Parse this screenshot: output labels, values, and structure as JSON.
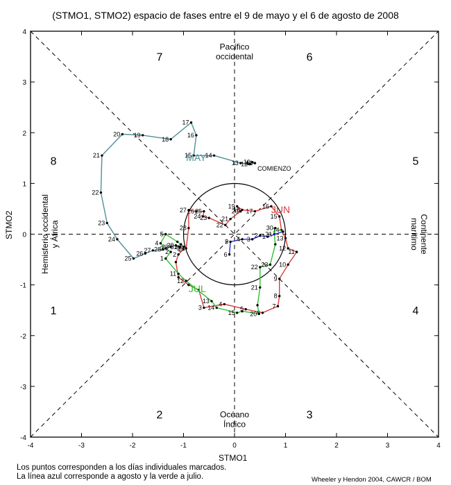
{
  "chart_data": {
    "type": "scatter",
    "title": "(STMO1, STMO2) espacio de fases entre el 9 de mayo y el 6 de agosto de 2008",
    "xlabel": "STMO1",
    "ylabel": "STMO2",
    "xlim": [
      -4,
      4
    ],
    "ylim": [
      -4,
      4
    ],
    "xticks": [
      "-4",
      "-3",
      "-2",
      "-1",
      "0",
      "1",
      "2",
      "3",
      "4"
    ],
    "yticks": [
      "-4",
      "-3",
      "-2",
      "-1",
      "0",
      "1",
      "2",
      "3",
      "4"
    ],
    "grid": false,
    "unit_circle_radius": 1,
    "phase_numbers": [
      {
        "label": "1",
        "x": -3.55,
        "y": -1.5
      },
      {
        "label": "2",
        "x": -1.47,
        "y": -3.55
      },
      {
        "label": "3",
        "x": 1.47,
        "y": -3.55
      },
      {
        "label": "4",
        "x": 3.55,
        "y": -1.5
      },
      {
        "label": "5",
        "x": 3.55,
        "y": 1.45
      },
      {
        "label": "6",
        "x": 1.47,
        "y": 3.5
      },
      {
        "label": "7",
        "x": -1.47,
        "y": 3.5
      },
      {
        "label": "8",
        "x": -3.55,
        "y": 1.45
      }
    ],
    "region_labels": [
      {
        "lines": [
          "Pacífico",
          "occidental"
        ],
        "x": 0,
        "y": 3.6,
        "orient": "h"
      },
      {
        "lines": [
          "Océano",
          "Índico"
        ],
        "x": 0,
        "y": -3.65,
        "orient": "h"
      },
      {
        "lines": [
          "Hemisferio occidental",
          "y África"
        ],
        "x": -3.62,
        "y": 0,
        "orient": "ccw"
      },
      {
        "lines": [
          "Continente",
          "marítimo"
        ],
        "x": 3.62,
        "y": 0,
        "orient": "cw"
      }
    ],
    "annotations": [
      {
        "text": "COMIENZO",
        "x": 0.45,
        "y": 1.25,
        "size": 9,
        "color": "#000000"
      },
      {
        "text": "MAY",
        "x": -0.95,
        "y": 1.44,
        "size": 14,
        "color": "#4e8e96"
      },
      {
        "text": "JUN",
        "x": 0.72,
        "y": 0.42,
        "size": 14,
        "color": "#d83c3c"
      },
      {
        "text": "JUL",
        "x": -0.9,
        "y": -1.14,
        "size": 14,
        "color": "#2ec12e"
      }
    ],
    "series": [
      {
        "name": "mayo",
        "color": "#4e8e96",
        "points": [
          {
            "x": 0.25,
            "y": 1.4,
            "label": ""
          },
          {
            "x": 0.35,
            "y": 1.42,
            "label": "10"
          },
          {
            "x": 0.4,
            "y": 1.4,
            "label": "11"
          },
          {
            "x": 0.3,
            "y": 1.38,
            "label": "12"
          },
          {
            "x": 0.12,
            "y": 1.4,
            "label": "13"
          },
          {
            "x": -0.4,
            "y": 1.55,
            "label": "14"
          },
          {
            "x": -0.8,
            "y": 1.55,
            "label": "15"
          },
          {
            "x": -0.75,
            "y": 1.95,
            "label": "16"
          },
          {
            "x": -0.85,
            "y": 2.2,
            "label": "17"
          },
          {
            "x": -1.25,
            "y": 1.87,
            "label": "18"
          },
          {
            "x": -1.8,
            "y": 1.95,
            "label": "19"
          },
          {
            "x": -2.2,
            "y": 1.97,
            "label": "20"
          },
          {
            "x": -2.6,
            "y": 1.55,
            "label": "21"
          },
          {
            "x": -2.62,
            "y": 0.82,
            "label": "22"
          },
          {
            "x": -2.5,
            "y": 0.22,
            "label": "23"
          },
          {
            "x": -2.3,
            "y": -0.1,
            "label": "24"
          },
          {
            "x": -1.98,
            "y": -0.48,
            "label": "25"
          },
          {
            "x": -1.75,
            "y": -0.38,
            "label": "26"
          },
          {
            "x": -1.6,
            "y": -0.32,
            "label": "27"
          },
          {
            "x": -1.4,
            "y": -0.3,
            "label": "28"
          },
          {
            "x": -1.25,
            "y": -0.25,
            "label": "29"
          },
          {
            "x": -1.15,
            "y": -0.22,
            "label": "30"
          },
          {
            "x": -1.08,
            "y": -0.25,
            "label": "31"
          }
        ]
      },
      {
        "name": "junio",
        "color": "#d83c3c",
        "points": [
          {
            "x": -1.08,
            "y": -0.25,
            "label": ""
          },
          {
            "x": -1.0,
            "y": -0.3,
            "label": "1"
          },
          {
            "x": -1.1,
            "y": -0.4,
            "label": "2"
          },
          {
            "x": -1.15,
            "y": -0.55,
            "label": ""
          },
          {
            "x": -1.1,
            "y": -0.85,
            "label": ""
          },
          {
            "x": -0.9,
            "y": -1.0,
            "label": ""
          },
          {
            "x": -0.7,
            "y": -1.1,
            "label": ""
          },
          {
            "x": -0.6,
            "y": -1.45,
            "label": "3"
          },
          {
            "x": -0.2,
            "y": -1.38,
            "label": "4"
          },
          {
            "x": 0.22,
            "y": -1.48,
            "label": "5"
          },
          {
            "x": 0.55,
            "y": -1.55,
            "label": "6"
          },
          {
            "x": 0.85,
            "y": -1.42,
            "label": "7"
          },
          {
            "x": 0.88,
            "y": -1.22,
            "label": "8"
          },
          {
            "x": 0.88,
            "y": -0.88,
            "label": "9"
          },
          {
            "x": 1.05,
            "y": -0.6,
            "label": "10"
          },
          {
            "x": 1.22,
            "y": -0.35,
            "label": "11"
          },
          {
            "x": 1.05,
            "y": -0.28,
            "label": "12"
          },
          {
            "x": 1.0,
            "y": -0.08,
            "label": "13"
          },
          {
            "x": 0.92,
            "y": 0.08,
            "label": "14"
          },
          {
            "x": 0.88,
            "y": 0.35,
            "label": "15"
          },
          {
            "x": 0.72,
            "y": 0.55,
            "label": "16"
          },
          {
            "x": 0.4,
            "y": 0.45,
            "label": "17"
          },
          {
            "x": 0.15,
            "y": 0.48,
            "label": "18"
          },
          {
            "x": 0.05,
            "y": 0.55,
            "label": "19"
          },
          {
            "x": 0.12,
            "y": 0.45,
            "label": "20"
          },
          {
            "x": -0.08,
            "y": 0.3,
            "label": "21"
          },
          {
            "x": -0.18,
            "y": 0.18,
            "label": "22"
          },
          {
            "x": -0.5,
            "y": 0.32,
            "label": "23"
          },
          {
            "x": -0.62,
            "y": 0.35,
            "label": "24"
          },
          {
            "x": -0.6,
            "y": 0.45,
            "label": "25"
          },
          {
            "x": -0.75,
            "y": 0.45,
            "label": "26"
          },
          {
            "x": -0.9,
            "y": 0.47,
            "label": "27"
          },
          {
            "x": -0.9,
            "y": 0.12,
            "label": "28"
          },
          {
            "x": -0.95,
            "y": -0.28,
            "label": "29"
          },
          {
            "x": -1.0,
            "y": -0.25,
            "label": "30"
          }
        ]
      },
      {
        "name": "julio",
        "color": "#2ec12e",
        "points": [
          {
            "x": -1.0,
            "y": -0.25,
            "label": ""
          },
          {
            "x": -1.05,
            "y": -0.2,
            "label": ""
          },
          {
            "x": -1.12,
            "y": -0.15,
            "label": ""
          },
          {
            "x": -1.35,
            "y": 0.0,
            "label": "5"
          },
          {
            "x": -1.45,
            "y": -0.18,
            "label": "4"
          },
          {
            "x": -1.35,
            "y": -0.28,
            "label": "3"
          },
          {
            "x": -1.25,
            "y": -0.35,
            "label": "2"
          },
          {
            "x": -1.35,
            "y": -0.48,
            "label": "1"
          },
          {
            "x": -1.1,
            "y": -0.78,
            "label": "11"
          },
          {
            "x": -0.95,
            "y": -0.92,
            "label": "12"
          },
          {
            "x": -0.45,
            "y": -1.32,
            "label": "13"
          },
          {
            "x": -0.35,
            "y": -1.45,
            "label": "14"
          },
          {
            "x": 0.05,
            "y": -1.55,
            "label": "15"
          },
          {
            "x": 0.15,
            "y": -1.52,
            "label": ""
          },
          {
            "x": 0.48,
            "y": -1.57,
            "label": "20"
          },
          {
            "x": 0.45,
            "y": -1.4,
            "label": ""
          },
          {
            "x": 0.5,
            "y": -1.05,
            "label": "21"
          },
          {
            "x": 0.5,
            "y": -0.65,
            "label": "22"
          },
          {
            "x": 0.7,
            "y": -0.6,
            "label": "23"
          },
          {
            "x": 0.8,
            "y": -0.2,
            "label": ""
          },
          {
            "x": 0.78,
            "y": 0.0,
            "label": "31"
          },
          {
            "x": 0.8,
            "y": 0.12,
            "label": "30"
          },
          {
            "x": 0.95,
            "y": 0.05,
            "label": ""
          }
        ]
      },
      {
        "name": "agosto",
        "color": "#2a2ad6",
        "points": [
          {
            "x": 0.95,
            "y": 0.05,
            "label": ""
          },
          {
            "x": 0.65,
            "y": -0.05,
            "label": "1"
          },
          {
            "x": 0.5,
            "y": -0.03,
            "label": "2"
          },
          {
            "x": 0.35,
            "y": -0.1,
            "label": "3"
          },
          {
            "x": 0.15,
            "y": -0.1,
            "label": "4"
          },
          {
            "x": -0.08,
            "y": -0.15,
            "label": "5"
          },
          {
            "x": -0.1,
            "y": -0.4,
            "label": "6"
          }
        ]
      }
    ]
  },
  "footer": {
    "note_line1": "Los puntos corresponden a los días individuales marcados.",
    "note_line2": "La línea azul corresponde a agosto y la verde a julio.",
    "credit": "Wheeler y Hendon 2004, CAWCR / BOM"
  }
}
